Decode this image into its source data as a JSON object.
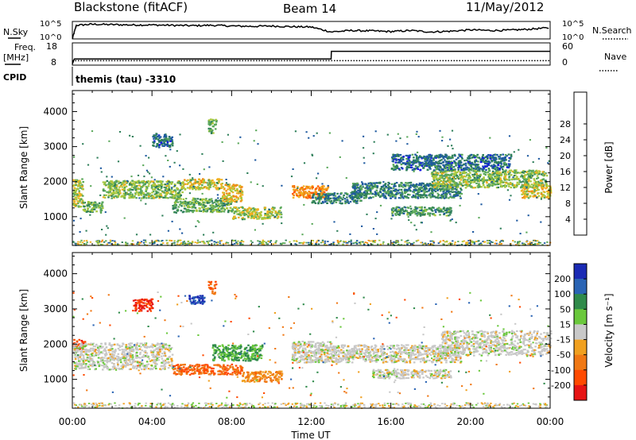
{
  "header": {
    "station": "Blackstone (fitACF)",
    "beam": "Beam 14",
    "date": "11/May/2012"
  },
  "top_panels": {
    "nsky_label": "N.Sky",
    "nsky_ticks": [
      "10^5",
      "10^0"
    ],
    "nsearch_label": "N.Search",
    "nsearch_ticks": [
      "10^5",
      "10^0"
    ],
    "freq_label": "Freq.",
    "freq_unit": "[MHz]",
    "freq_ticks": [
      "18",
      "8"
    ],
    "nave_label": "Nave",
    "nave_ticks": [
      "60",
      "0"
    ],
    "cpid_label": "CPID",
    "cpid_text": "themis (tau) -3310"
  },
  "colors": {
    "power_scale": [
      "#1414e6",
      "#1e5aa0",
      "#2f7f5a",
      "#5aa85a",
      "#a8c83c",
      "#f0b020",
      "#f08a14",
      "#ff5a00",
      "#e61414"
    ],
    "velocity_scale": [
      "#1a2ab4",
      "#2a64b4",
      "#2f8a4a",
      "#6ac83c",
      "#c8c8c8",
      "#c8c8c8",
      "#f0a020",
      "#f07814",
      "#ff4a00",
      "#e61414"
    ]
  },
  "chart_data": [
    {
      "type": "line",
      "title": "N.Sky / N.Search",
      "x_range_hours": [
        0,
        24
      ],
      "ylim_log10": [
        0,
        5
      ],
      "series": [
        {
          "name": "N.Sky",
          "x": [
            0,
            0.2,
            1,
            2,
            3,
            4,
            5,
            6,
            7,
            8,
            9,
            10,
            11,
            12,
            13,
            14,
            15,
            16,
            17,
            18,
            19,
            20,
            21,
            22,
            23,
            24
          ],
          "values_log10": [
            0,
            3.9,
            4.2,
            4.1,
            4.0,
            4.0,
            3.9,
            3.8,
            3.9,
            3.7,
            3.6,
            3.7,
            3.5,
            3.4,
            2.0,
            2.4,
            2.3,
            2.1,
            2.4,
            2.0,
            2.2,
            2.6,
            2.4,
            2.5,
            2.8,
            3.2
          ]
        }
      ]
    },
    {
      "type": "line",
      "title": "Freq. / Nave",
      "x_range_hours": [
        0,
        24
      ],
      "freq_ylim": [
        8,
        18
      ],
      "nave_ylim": [
        0,
        60
      ],
      "series": [
        {
          "name": "Freq.",
          "x": [
            0,
            0.1,
            13,
            13.01,
            24
          ],
          "values": [
            8.5,
            10.8,
            10.8,
            14.2,
            14.2
          ]
        },
        {
          "name": "Nave",
          "x": [
            0,
            24
          ],
          "values": [
            12,
            12
          ]
        }
      ]
    },
    {
      "type": "heatmap",
      "title": "Power",
      "xlabel": "",
      "ylabel": "Slant Range [km]",
      "x_ticks": [
        "00:00",
        "04:00",
        "08:00",
        "12:00",
        "16:00",
        "20:00",
        "00:00"
      ],
      "y_ticks": [
        1000,
        2000,
        3000,
        4000
      ],
      "xlim_hours": [
        0,
        24
      ],
      "ylim_km": [
        180,
        4600
      ],
      "colorbar_label": "Power [dB]",
      "colorbar_ticks": [
        4,
        8,
        12,
        16,
        20,
        24,
        28
      ],
      "regions": [
        {
          "t0": 0.0,
          "t1": 0.5,
          "r0": 1300,
          "r1": 2100,
          "level": 18
        },
        {
          "t0": 0.5,
          "t1": 1.5,
          "r0": 1150,
          "r1": 1450,
          "level": 14
        },
        {
          "t0": 1.5,
          "t1": 5.5,
          "r0": 1550,
          "r1": 2050,
          "level": 16
        },
        {
          "t0": 5.5,
          "t1": 7.5,
          "r0": 1800,
          "r1": 2100,
          "level": 20
        },
        {
          "t0": 5.0,
          "t1": 8.0,
          "r0": 1150,
          "r1": 1550,
          "level": 14
        },
        {
          "t0": 7.5,
          "t1": 8.5,
          "r0": 1450,
          "r1": 1950,
          "level": 22
        },
        {
          "t0": 8.0,
          "t1": 10.5,
          "r0": 950,
          "r1": 1300,
          "level": 18
        },
        {
          "t0": 11.0,
          "t1": 12.8,
          "r0": 1550,
          "r1": 1900,
          "level": 26
        },
        {
          "t0": 12.0,
          "t1": 14.5,
          "r0": 1400,
          "r1": 1700,
          "level": 10
        },
        {
          "t0": 14.0,
          "t1": 19.5,
          "r0": 1550,
          "r1": 2000,
          "level": 10
        },
        {
          "t0": 16.0,
          "t1": 19.0,
          "r0": 1050,
          "r1": 1300,
          "level": 12
        },
        {
          "t0": 18.0,
          "t1": 23.8,
          "r0": 1850,
          "r1": 2350,
          "level": 16
        },
        {
          "t0": 22.5,
          "t1": 24.0,
          "r0": 1550,
          "r1": 1950,
          "level": 20
        },
        {
          "t0": 16.0,
          "t1": 22.0,
          "r0": 2350,
          "r1": 2800,
          "level": 8
        },
        {
          "t0": 6.8,
          "t1": 7.2,
          "r0": 3400,
          "r1": 3800,
          "level": 14
        },
        {
          "t0": 4.0,
          "t1": 5.0,
          "r0": 3000,
          "r1": 3400,
          "level": 8
        }
      ]
    },
    {
      "type": "heatmap",
      "title": "Velocity",
      "xlabel": "Time UT",
      "ylabel": "Slant Range [km]",
      "x_ticks": [
        "00:00",
        "04:00",
        "08:00",
        "12:00",
        "16:00",
        "20:00",
        "00:00"
      ],
      "y_ticks": [
        1000,
        2000,
        3000,
        4000
      ],
      "xlim_hours": [
        0,
        24
      ],
      "ylim_km": [
        180,
        4600
      ],
      "colorbar_label": "Velocity [m s⁻¹]",
      "colorbar_ticks": [
        200,
        100,
        50,
        15,
        -15,
        -50,
        -100,
        -200
      ],
      "regions": [
        {
          "t0": 0.0,
          "t1": 0.6,
          "r0": 1850,
          "r1": 2150,
          "level": -200
        },
        {
          "t0": 0.0,
          "t1": 5.0,
          "r0": 1300,
          "r1": 2050,
          "level": 0
        },
        {
          "t0": 5.0,
          "t1": 8.5,
          "r0": 1150,
          "r1": 1450,
          "level": -100
        },
        {
          "t0": 7.0,
          "t1": 9.5,
          "r0": 1550,
          "r1": 2000,
          "level": 50
        },
        {
          "t0": 8.5,
          "t1": 10.5,
          "r0": 950,
          "r1": 1250,
          "level": -50
        },
        {
          "t0": 11.0,
          "t1": 13.0,
          "r0": 1500,
          "r1": 2100,
          "level": 0
        },
        {
          "t0": 13.0,
          "t1": 19.5,
          "r0": 1500,
          "r1": 2000,
          "level": 0
        },
        {
          "t0": 15.0,
          "t1": 19.0,
          "r0": 1050,
          "r1": 1300,
          "level": 0
        },
        {
          "t0": 18.5,
          "t1": 24.0,
          "r0": 1700,
          "r1": 2400,
          "level": 0
        },
        {
          "t0": 5.8,
          "t1": 6.6,
          "r0": 3150,
          "r1": 3400,
          "level": 200
        },
        {
          "t0": 6.8,
          "t1": 7.2,
          "r0": 3450,
          "r1": 3800,
          "level": -100
        },
        {
          "t0": 3.0,
          "t1": 4.0,
          "r0": 2950,
          "r1": 3300,
          "level": -200
        }
      ]
    }
  ]
}
